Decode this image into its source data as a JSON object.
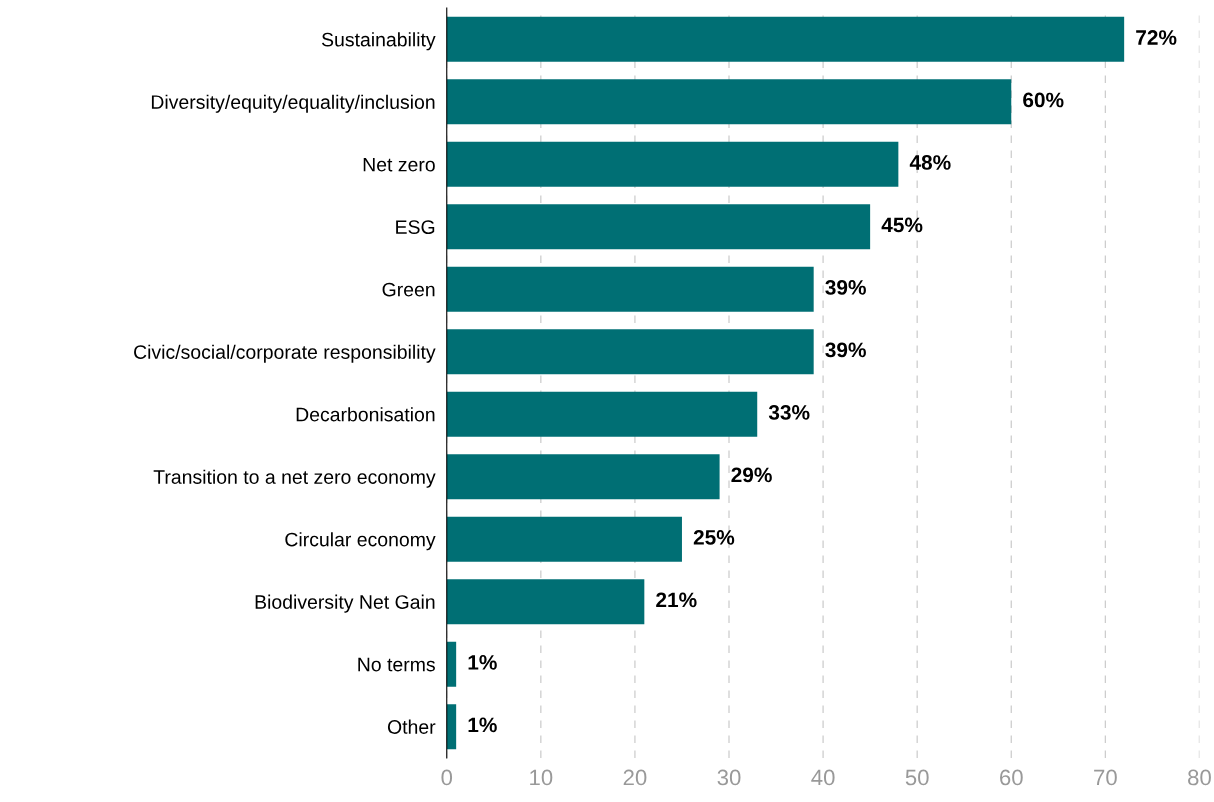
{
  "chart_data": {
    "type": "bar",
    "orientation": "horizontal",
    "categories": [
      "Sustainability",
      "Diversity/equity/equality/inclusion",
      "Net zero",
      "ESG",
      "Green",
      "Civic/social/corporate responsibility",
      "Decarbonisation",
      "Transition to a net zero economy",
      "Circular economy",
      "Biodiversity Net Gain",
      "No terms",
      "Other"
    ],
    "values": [
      72,
      60,
      48,
      45,
      39,
      39,
      33,
      29,
      25,
      21,
      1,
      1
    ],
    "value_labels": [
      "72%",
      "60%",
      "48%",
      "45%",
      "39%",
      "39%",
      "33%",
      "29%",
      "25%",
      "21%",
      "1%",
      "1%"
    ],
    "color": "#006f74",
    "xlim": [
      0,
      80
    ],
    "xticks": [
      0,
      10,
      20,
      30,
      40,
      50,
      60,
      70,
      80
    ],
    "grid": "x"
  }
}
